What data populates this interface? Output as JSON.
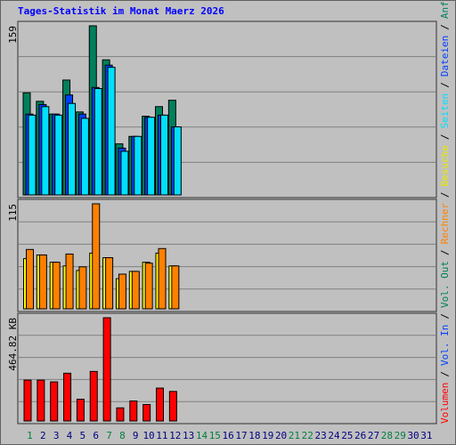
{
  "chart_data": {
    "type": "bar",
    "title": "Tages-Statistik im Monat Maerz 2026",
    "categories": [
      "1",
      "2",
      "3",
      "4",
      "5",
      "6",
      "7",
      "8",
      "9",
      "10",
      "11",
      "12",
      "13",
      "14",
      "15",
      "16",
      "17",
      "18",
      "19",
      "20",
      "21",
      "22",
      "23",
      "24",
      "25",
      "26",
      "27",
      "28",
      "29",
      "30",
      "31"
    ],
    "category_colors": [
      "#008040",
      "#000080",
      "#000080",
      "#000080",
      "#000080",
      "#000080",
      "#008040",
      "#008040",
      "#000080",
      "#000080",
      "#000080",
      "#000080",
      "#000080",
      "#008040",
      "#008040",
      "#000080",
      "#000080",
      "#000080",
      "#000080",
      "#000080",
      "#008040",
      "#008040",
      "#000080",
      "#000080",
      "#000080",
      "#000080",
      "#000080",
      "#008040",
      "#008040",
      "#000080",
      "#000080"
    ],
    "grid": true,
    "panels": [
      {
        "ylim": [
          0,
          159
        ],
        "yticks": [
          159
        ],
        "series": [
          {
            "color": "#00805c",
            "values": [
              96,
              88,
              76,
              108,
              78,
              159,
              127,
              48,
              55,
              74,
              83,
              89,
              null,
              null,
              null,
              null,
              null,
              null,
              null,
              null,
              null,
              null,
              null,
              null,
              null,
              null,
              null,
              null,
              null,
              null,
              null
            ]
          },
          {
            "color": "#0040ff",
            "values": [
              76,
              85,
              76,
              94,
              76,
              101,
              122,
              44,
              55,
              73,
              75,
              64,
              null,
              null,
              null,
              null,
              null,
              null,
              null,
              null,
              null,
              null,
              null,
              null,
              null,
              null,
              null,
              null,
              null,
              null,
              null
            ]
          },
          {
            "color": "#00e0ff",
            "values": [
              75,
              83,
              75,
              86,
              72,
              100,
              120,
              41,
              55,
              73,
              75,
              64,
              null,
              null,
              null,
              null,
              null,
              null,
              null,
              null,
              null,
              null,
              null,
              null,
              null,
              null,
              null,
              null,
              null,
              null,
              null
            ]
          }
        ]
      },
      {
        "ylim": [
          0,
          115
        ],
        "yticks": [
          115
        ],
        "series": [
          {
            "color": "#ffff00",
            "values": [
              55,
              59,
              51,
              47,
              42,
              61,
              56,
              33,
              41,
              51,
              61,
              47,
              null,
              null,
              null,
              null,
              null,
              null,
              null,
              null,
              null,
              null,
              null,
              null,
              null,
              null,
              null,
              null,
              null,
              null,
              null
            ]
          },
          {
            "color": "#ff8000",
            "values": [
              65,
              59,
              51,
              60,
              46,
              115,
              56,
              38,
              41,
              50,
              66,
              47,
              null,
              null,
              null,
              null,
              null,
              null,
              null,
              null,
              null,
              null,
              null,
              null,
              null,
              null,
              null,
              null,
              null,
              null,
              null
            ]
          }
        ]
      },
      {
        "ylim": [
          0,
          464.82
        ],
        "yticks": [
          {
            "value": 464.82,
            "label": "464.82 KB"
          }
        ],
        "series": [
          {
            "color": "#ff0000",
            "values": [
              184,
              184,
              176,
              215,
              98,
              223,
              464.82,
              59,
              90,
              74,
              148,
              133,
              null,
              null,
              null,
              null,
              null,
              null,
              null,
              null,
              null,
              null,
              null,
              null,
              null,
              null,
              null,
              null,
              null,
              null,
              null
            ]
          }
        ]
      }
    ],
    "legend_separator": "/",
    "legend": [
      {
        "name": "Volumen",
        "color": "#ff0000"
      },
      {
        "name": "Vol. In",
        "color": "#0040ff"
      },
      {
        "name": "Vol. Out",
        "color": "#00805c"
      },
      {
        "name": "Rechner",
        "color": "#ff8000"
      },
      {
        "name": "Besuche",
        "color": "#e8e800"
      },
      {
        "name": "Seiten",
        "color": "#00e0ff"
      },
      {
        "name": "Dateien",
        "color": "#0040ff"
      },
      {
        "name": "Anfragen",
        "color": "#00805c"
      }
    ]
  }
}
